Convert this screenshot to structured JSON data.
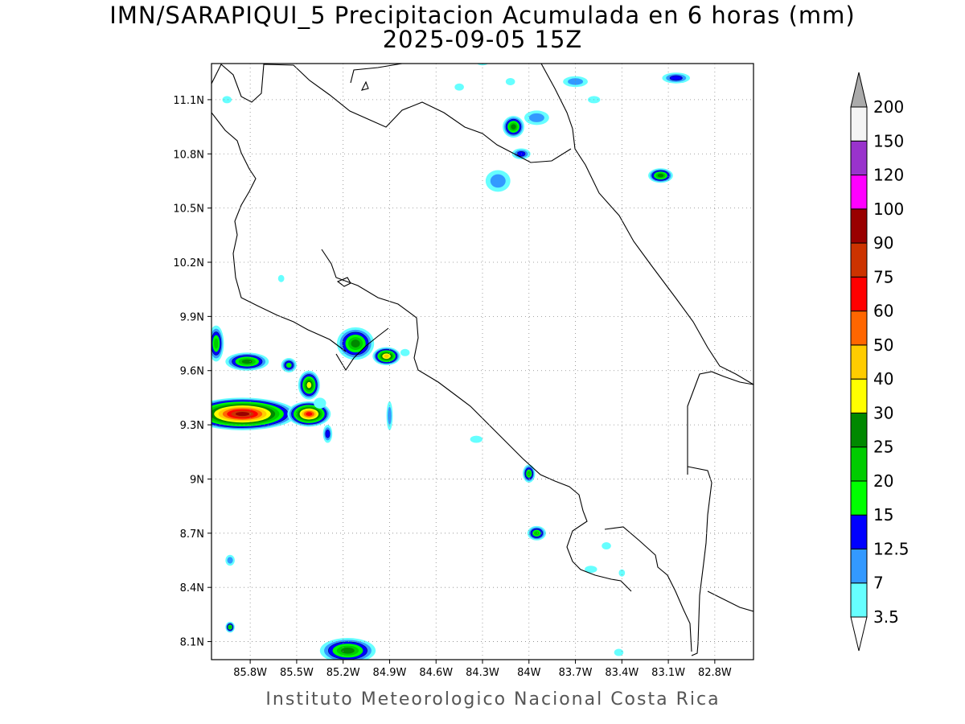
{
  "title": {
    "line1": "IMN/SARAPIQUI_5 Precipitacion Acumulada en 6 horas (mm)",
    "line2": "2025-09-05 15Z"
  },
  "footer": "Instituto Meteorologico Nacional Costa Rica",
  "map": {
    "lon_range": [
      -86.05,
      -82.55
    ],
    "lat_range": [
      8.0,
      11.3
    ],
    "x_ticks": [
      {
        "lon": -85.8,
        "label": "85.8W"
      },
      {
        "lon": -85.5,
        "label": "85.5W"
      },
      {
        "lon": -85.2,
        "label": "85.2W"
      },
      {
        "lon": -84.9,
        "label": "84.9W"
      },
      {
        "lon": -84.6,
        "label": "84.6W"
      },
      {
        "lon": -84.3,
        "label": "84.3W"
      },
      {
        "lon": -84.0,
        "label": "84W"
      },
      {
        "lon": -83.7,
        "label": "83.7W"
      },
      {
        "lon": -83.4,
        "label": "83.4W"
      },
      {
        "lon": -83.1,
        "label": "83.1W"
      },
      {
        "lon": -82.8,
        "label": "82.8W"
      }
    ],
    "y_ticks": [
      {
        "lat": 8.1,
        "label": "8.1N"
      },
      {
        "lat": 8.4,
        "label": "8.4N"
      },
      {
        "lat": 8.7,
        "label": "8.7N"
      },
      {
        "lat": 9.0,
        "label": "9N"
      },
      {
        "lat": 9.3,
        "label": "9.3N"
      },
      {
        "lat": 9.6,
        "label": "9.6N"
      },
      {
        "lat": 9.9,
        "label": "9.9N"
      },
      {
        "lat": 10.2,
        "label": "10.2N"
      },
      {
        "lat": 10.5,
        "label": "10.5N"
      },
      {
        "lat": 10.8,
        "label": "10.8N"
      },
      {
        "lat": 11.1,
        "label": "11.1N"
      }
    ],
    "grid": true
  },
  "legend": {
    "levels": [
      {
        "label": "3.5",
        "color": "#66ffff"
      },
      {
        "label": "7",
        "color": "#3399ff"
      },
      {
        "label": "12.5",
        "color": "#0000ff"
      },
      {
        "label": "15",
        "color": "#00ff00"
      },
      {
        "label": "20",
        "color": "#00cc00"
      },
      {
        "label": "25",
        "color": "#008800"
      },
      {
        "label": "30",
        "color": "#ffff00"
      },
      {
        "label": "40",
        "color": "#ffcc00"
      },
      {
        "label": "50",
        "color": "#ff6600"
      },
      {
        "label": "60",
        "color": "#ff0000"
      },
      {
        "label": "75",
        "color": "#cc3300"
      },
      {
        "label": "90",
        "color": "#990000"
      },
      {
        "label": "100",
        "color": "#ff00ff"
      },
      {
        "label": "120",
        "color": "#9933cc"
      },
      {
        "label": "150",
        "color": "#f4f4f4"
      },
      {
        "label": "200",
        "color": "#aaaaaa"
      }
    ]
  },
  "precip_cells": [
    {
      "lon": -85.85,
      "lat": 9.36,
      "rx": 0.35,
      "ry": 0.09,
      "level": 11
    },
    {
      "lon": -85.42,
      "lat": 9.36,
      "rx": 0.14,
      "ry": 0.07,
      "level": 9
    },
    {
      "lon": -85.42,
      "lat": 9.52,
      "rx": 0.07,
      "ry": 0.08,
      "level": 6
    },
    {
      "lon": -85.82,
      "lat": 9.65,
      "rx": 0.14,
      "ry": 0.05,
      "level": 5
    },
    {
      "lon": -86.02,
      "lat": 9.75,
      "rx": 0.05,
      "ry": 0.1,
      "level": 4
    },
    {
      "lon": -85.12,
      "lat": 9.75,
      "rx": 0.12,
      "ry": 0.09,
      "level": 5
    },
    {
      "lon": -84.92,
      "lat": 9.68,
      "rx": 0.09,
      "ry": 0.05,
      "level": 7
    },
    {
      "lon": -85.55,
      "lat": 9.63,
      "rx": 0.05,
      "ry": 0.04,
      "level": 3
    },
    {
      "lon": -84.1,
      "lat": 10.95,
      "rx": 0.07,
      "ry": 0.06,
      "level": 5
    },
    {
      "lon": -83.95,
      "lat": 11.0,
      "rx": 0.08,
      "ry": 0.04,
      "level": 1
    },
    {
      "lon": -84.05,
      "lat": 10.8,
      "rx": 0.06,
      "ry": 0.03,
      "level": 2
    },
    {
      "lon": -84.2,
      "lat": 10.65,
      "rx": 0.08,
      "ry": 0.06,
      "level": 1
    },
    {
      "lon": -83.15,
      "lat": 10.68,
      "rx": 0.08,
      "ry": 0.04,
      "level": 5
    },
    {
      "lon": -83.05,
      "lat": 11.22,
      "rx": 0.09,
      "ry": 0.03,
      "level": 2
    },
    {
      "lon": -83.7,
      "lat": 11.2,
      "rx": 0.08,
      "ry": 0.03,
      "level": 1
    },
    {
      "lon": -84.0,
      "lat": 9.03,
      "rx": 0.04,
      "ry": 0.05,
      "level": 4
    },
    {
      "lon": -83.95,
      "lat": 8.7,
      "rx": 0.06,
      "ry": 0.04,
      "level": 4
    },
    {
      "lon": -85.17,
      "lat": 8.05,
      "rx": 0.18,
      "ry": 0.07,
      "level": 5
    },
    {
      "lon": -85.3,
      "lat": 9.25,
      "rx": 0.03,
      "ry": 0.05,
      "level": 2
    },
    {
      "lon": -85.93,
      "lat": 8.55,
      "rx": 0.03,
      "ry": 0.03,
      "level": 1
    },
    {
      "lon": -85.93,
      "lat": 8.18,
      "rx": 0.03,
      "ry": 0.03,
      "level": 4
    },
    {
      "lon": -84.3,
      "lat": 11.32,
      "rx": 0.05,
      "ry": 0.03,
      "level": 1
    },
    {
      "lon": -84.9,
      "lat": 9.35,
      "rx": 0.02,
      "ry": 0.08,
      "level": 1
    },
    {
      "lon": -84.8,
      "lat": 9.7,
      "rx": 0.03,
      "ry": 0.02,
      "level": 0
    },
    {
      "lon": -83.6,
      "lat": 8.5,
      "rx": 0.04,
      "ry": 0.02,
      "level": 0
    },
    {
      "lon": -83.4,
      "lat": 8.48,
      "rx": 0.02,
      "ry": 0.02,
      "level": 0
    },
    {
      "lon": -83.5,
      "lat": 8.63,
      "rx": 0.03,
      "ry": 0.02,
      "level": 0
    },
    {
      "lon": -84.34,
      "lat": 9.22,
      "rx": 0.04,
      "ry": 0.02,
      "level": 0
    },
    {
      "lon": -85.35,
      "lat": 9.42,
      "rx": 0.04,
      "ry": 0.03,
      "level": 0
    },
    {
      "lon": -84.45,
      "lat": 11.17,
      "rx": 0.03,
      "ry": 0.02,
      "level": 0
    },
    {
      "lon": -84.12,
      "lat": 11.2,
      "rx": 0.03,
      "ry": 0.02,
      "level": 0
    },
    {
      "lon": -83.58,
      "lat": 11.1,
      "rx": 0.04,
      "ry": 0.02,
      "level": 0
    },
    {
      "lon": -85.95,
      "lat": 11.1,
      "rx": 0.03,
      "ry": 0.02,
      "level": 0
    },
    {
      "lon": -85.6,
      "lat": 10.11,
      "rx": 0.02,
      "ry": 0.02,
      "level": 0
    },
    {
      "lon": -83.42,
      "lat": 8.04,
      "rx": 0.03,
      "ry": 0.02,
      "level": 0
    }
  ]
}
